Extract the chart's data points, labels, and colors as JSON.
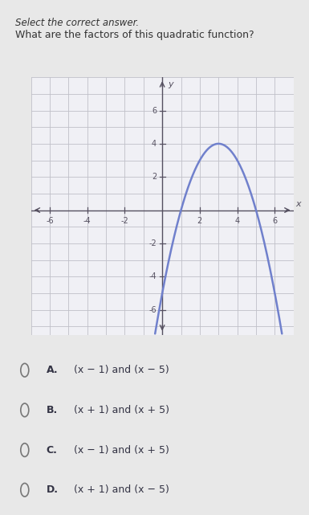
{
  "title_line1": "Select the correct answer.",
  "title_line2": "What are the factors of this quadratic function?",
  "page_bg": "#e8e8e8",
  "graph_bg": "#f0f0f5",
  "grid_color": "#c0c0c8",
  "curve_color": "#7080cc",
  "curve_linewidth": 1.8,
  "axis_color": "#555060",
  "tick_label_color": "#555060",
  "xlim": [
    -7,
    7
  ],
  "ylim": [
    -7.5,
    8
  ],
  "xticks": [
    -6,
    -4,
    -2,
    2,
    4,
    6
  ],
  "yticks": [
    -6,
    -4,
    -2,
    2,
    4,
    6
  ],
  "x_label": "x",
  "y_label": "y",
  "roots": [
    1,
    5
  ],
  "parabola_a": -1,
  "choices": [
    {
      "label": "A.",
      "text": "(x − 1) and (x − 5)"
    },
    {
      "label": "B.",
      "text": "(x + 1) and (x + 5)"
    },
    {
      "label": "C.",
      "text": "(x − 1) and (x + 5)"
    },
    {
      "label": "D.",
      "text": "(x + 1) and (x − 5)"
    }
  ],
  "title_fontsize": 8.5,
  "choice_fontsize": 9,
  "tick_fontsize": 7,
  "axis_label_fontsize": 8
}
